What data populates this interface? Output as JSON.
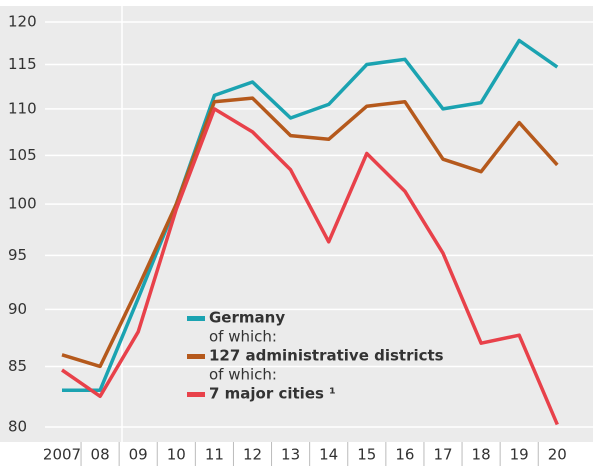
{
  "chart_data": {
    "type": "line",
    "yscale": "log",
    "grid": true,
    "categories": [
      "2007",
      "08",
      "09",
      "10",
      "11",
      "12",
      "13",
      "14",
      "15",
      "16",
      "17",
      "18",
      "19",
      "20"
    ],
    "series": [
      {
        "name": "Germany",
        "color": "#1ba3b1",
        "values": [
          83,
          83,
          91,
          100,
          111.5,
          113,
          109,
          110.5,
          115,
          115.6,
          110,
          110.7,
          117.8,
          114.7
        ]
      },
      {
        "name": "127 administrative districts",
        "color": "#b5591c",
        "values": [
          86,
          85,
          92,
          100,
          110.8,
          111.2,
          107.1,
          106.7,
          110.3,
          110.8,
          104.6,
          103.3,
          108.5,
          104
        ]
      },
      {
        "name": "7 major cities ¹",
        "color": "#e8414a",
        "values": [
          84.7,
          82.5,
          88,
          99.5,
          110,
          107.5,
          103.5,
          96.3,
          105.2,
          101.3,
          95.2,
          87,
          87.7,
          80.2
        ]
      }
    ],
    "legend_notes": [
      "of which:",
      "of which:"
    ],
    "ylim": [
      80,
      120
    ],
    "yticks": [
      80,
      85,
      90,
      95,
      100,
      105,
      110,
      115,
      120
    ]
  }
}
